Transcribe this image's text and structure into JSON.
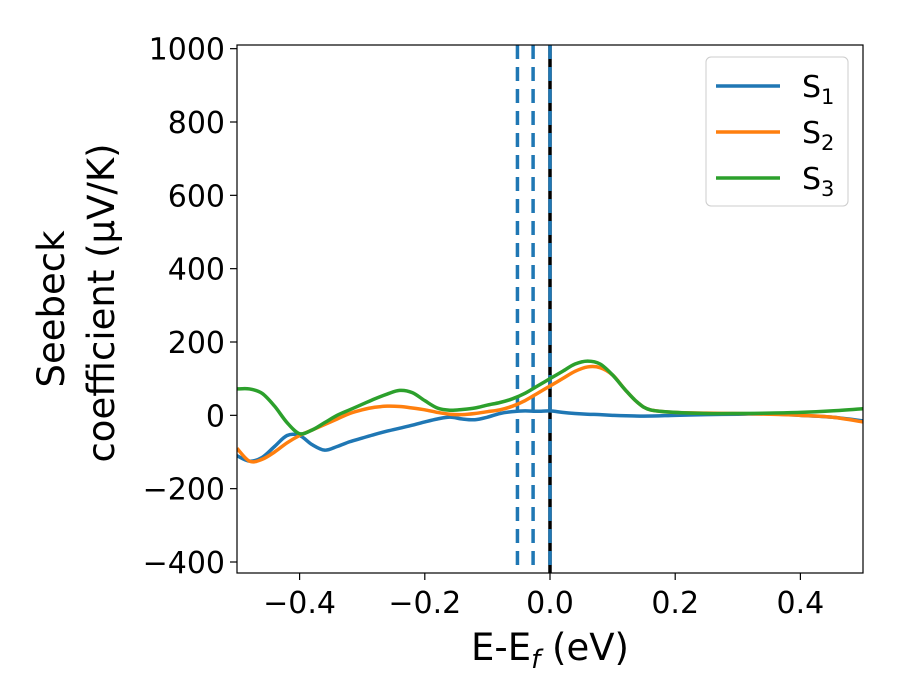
{
  "chart_data": {
    "type": "line",
    "xlabel": {
      "main": "E-E",
      "sub": "f",
      "unit": " (eV)"
    },
    "ylabel": {
      "line1": "Seebeck",
      "line2": "coefficient  (μV/K)"
    },
    "xlim": [
      -0.5,
      0.5
    ],
    "ylim": [
      -430,
      1010
    ],
    "xticks": [
      -0.4,
      -0.2,
      0.0,
      0.2,
      0.4
    ],
    "xtick_labels": [
      "−0.4",
      "−0.2",
      "0.0",
      "0.2",
      "0.4"
    ],
    "yticks": [
      -400,
      -200,
      0,
      200,
      400,
      600,
      800,
      1000
    ],
    "ytick_labels": [
      "−400",
      "−200",
      "0",
      "200",
      "400",
      "600",
      "800",
      "1000"
    ],
    "grid": false,
    "legend_position": "top-right",
    "series": [
      {
        "name": "S",
        "subscript": "1",
        "color": "#1f77b4",
        "x": [
          -0.5,
          -0.48,
          -0.46,
          -0.44,
          -0.42,
          -0.4,
          -0.38,
          -0.36,
          -0.34,
          -0.32,
          -0.3,
          -0.28,
          -0.26,
          -0.24,
          -0.22,
          -0.2,
          -0.18,
          -0.16,
          -0.14,
          -0.12,
          -0.1,
          -0.08,
          -0.06,
          -0.04,
          -0.02,
          0.0,
          0.02,
          0.04,
          0.06,
          0.08,
          0.1,
          0.15,
          0.2,
          0.25,
          0.3,
          0.35,
          0.4,
          0.45,
          0.5
        ],
        "y": [
          -110,
          -125,
          -115,
          -85,
          -55,
          -55,
          -80,
          -95,
          -85,
          -72,
          -62,
          -52,
          -43,
          -35,
          -27,
          -18,
          -10,
          -5,
          -10,
          -12,
          -5,
          5,
          10,
          12,
          11,
          12,
          8,
          5,
          3,
          2,
          0,
          -2,
          0,
          2,
          3,
          4,
          0,
          -5,
          -15
        ]
      },
      {
        "name": "S",
        "subscript": "2",
        "color": "#ff7f0e",
        "x": [
          -0.5,
          -0.48,
          -0.46,
          -0.44,
          -0.42,
          -0.4,
          -0.38,
          -0.36,
          -0.34,
          -0.32,
          -0.3,
          -0.28,
          -0.26,
          -0.24,
          -0.22,
          -0.2,
          -0.18,
          -0.16,
          -0.14,
          -0.12,
          -0.1,
          -0.08,
          -0.06,
          -0.04,
          -0.02,
          0.0,
          0.02,
          0.04,
          0.06,
          0.08,
          0.1,
          0.12,
          0.14,
          0.16,
          0.2,
          0.25,
          0.3,
          0.35,
          0.4,
          0.45,
          0.5
        ],
        "y": [
          -90,
          -125,
          -120,
          -100,
          -75,
          -55,
          -40,
          -25,
          -10,
          5,
          15,
          22,
          25,
          24,
          20,
          15,
          8,
          3,
          2,
          5,
          10,
          15,
          25,
          40,
          60,
          80,
          100,
          120,
          132,
          130,
          110,
          70,
          35,
          15,
          8,
          6,
          5,
          3,
          0,
          -5,
          -18
        ]
      },
      {
        "name": "S",
        "subscript": "3",
        "color": "#2ca02c",
        "x": [
          -0.5,
          -0.48,
          -0.46,
          -0.44,
          -0.42,
          -0.4,
          -0.38,
          -0.36,
          -0.34,
          -0.32,
          -0.3,
          -0.28,
          -0.26,
          -0.24,
          -0.22,
          -0.2,
          -0.18,
          -0.16,
          -0.14,
          -0.12,
          -0.1,
          -0.08,
          -0.06,
          -0.04,
          -0.02,
          0.0,
          0.02,
          0.04,
          0.06,
          0.08,
          0.1,
          0.12,
          0.14,
          0.16,
          0.2,
          0.25,
          0.3,
          0.35,
          0.4,
          0.45,
          0.5
        ],
        "y": [
          72,
          72,
          60,
          25,
          -20,
          -50,
          -40,
          -20,
          0,
          15,
          30,
          45,
          58,
          68,
          62,
          40,
          20,
          14,
          16,
          20,
          28,
          35,
          45,
          60,
          80,
          100,
          120,
          140,
          148,
          140,
          110,
          70,
          35,
          15,
          8,
          5,
          5,
          6,
          8,
          12,
          18
        ]
      }
    ],
    "vlines": [
      {
        "x": -0.052,
        "color": "#1f77b4",
        "style": "dashed"
      },
      {
        "x": -0.027,
        "color": "#1f77b4",
        "style": "dashed"
      },
      {
        "x": 0.0,
        "color": "#000000",
        "style": "solid"
      },
      {
        "x": 0.0,
        "color": "#1f77b4",
        "style": "dashed"
      }
    ]
  }
}
